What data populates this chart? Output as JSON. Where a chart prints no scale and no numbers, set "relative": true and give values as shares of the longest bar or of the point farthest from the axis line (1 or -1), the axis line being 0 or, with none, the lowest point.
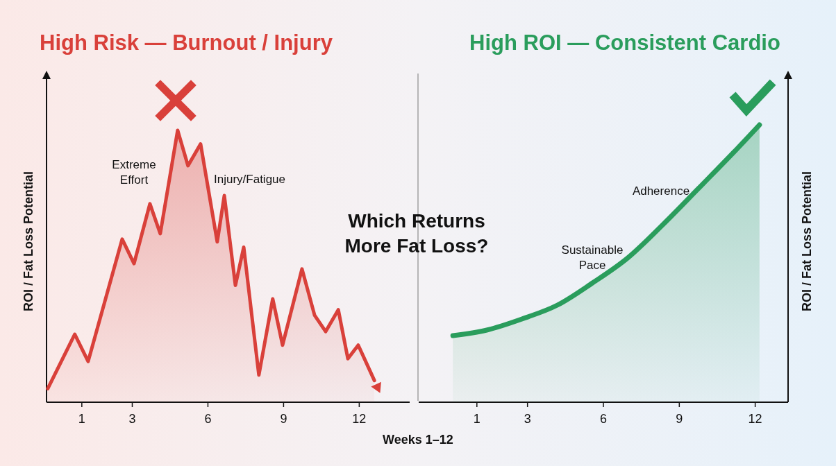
{
  "chart_data": [
    {
      "type": "area",
      "title": "High Risk — Burnout / Injury",
      "xlabel": "Weeks 1–12",
      "ylabel": "ROI / Fat Loss Potential",
      "relative": true,
      "xlim": [
        -0.4,
        14
      ],
      "xticks": [
        1,
        3,
        6,
        9,
        12
      ],
      "annotations": [
        "Extreme Effort",
        "Injury/Fatigue",
        "Which Returns More Fat Loss?"
      ],
      "series": [
        {
          "color": "#d9403a",
          "x": [
            -0.35,
            0.72,
            1.25,
            2.6,
            3.07,
            3.7,
            4.11,
            4.8,
            5.21,
            5.71,
            6.37,
            6.65,
            7.09,
            7.42,
            8.02,
            8.57,
            8.96,
            9.73,
            10.23,
            10.67,
            11.17,
            11.55,
            11.96,
            12.6
          ],
          "values": [
            0.05,
            0.25,
            0.15,
            0.6,
            0.51,
            0.73,
            0.62,
            1,
            0.87,
            0.95,
            0.59,
            0.76,
            0.43,
            0.57,
            0.1,
            0.38,
            0.21,
            0.49,
            0.32,
            0.26,
            0.34,
            0.16,
            0.21,
            0.08
          ]
        }
      ]
    },
    {
      "type": "area",
      "title": "High ROI — Consistent Cardio",
      "ylabel": "ROI / Fat Loss Potential",
      "relative": true,
      "xlim": [
        -1.3,
        13.3
      ],
      "xticks": [
        1,
        3,
        6,
        9,
        12
      ],
      "annotations": [
        "Sustainable Pace",
        "Adherence"
      ],
      "series": [
        {
          "color": "#2a9d5c",
          "x": [
            0.05,
            1.39,
            2.78,
            4.18,
            5.57,
            6.96,
            8.35,
            9.75,
            11.14,
            12.17
          ],
          "values": [
            0.24,
            0.26,
            0.3,
            0.35,
            0.43,
            0.52,
            0.64,
            0.77,
            0.9,
            1
          ]
        }
      ]
    }
  ]
}
